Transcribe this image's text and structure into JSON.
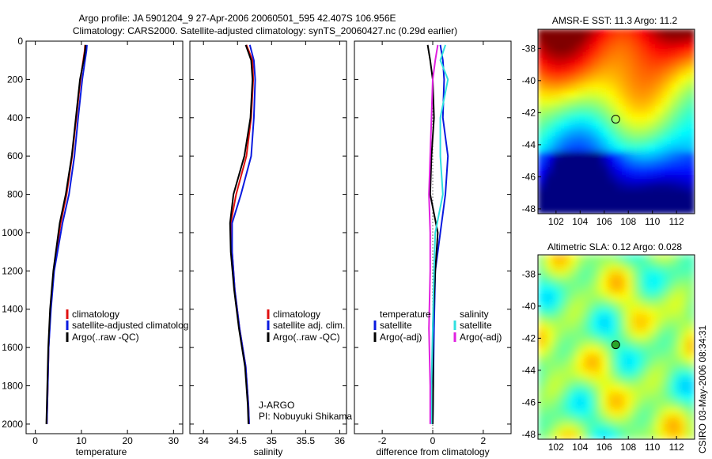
{
  "header": {
    "title_line1": "Argo profile: JA 5901204_9 27-Apr-2006 20060501_595 42.407S 106.956E",
    "title_line2": "Climatology: CARS2000. Satellite-adjusted climatology: synTS_20060427.nc (0.29d earlier)"
  },
  "side_text": "CSIRO 03-May-2006 08:34:31",
  "colors": {
    "climatology": "#e01010",
    "satellite": "#0a1adf",
    "argo": "#000000",
    "sat_salinity": "#30e0e0",
    "argo_salinity_adj": "#e020e0"
  },
  "chart_data": [
    {
      "type": "line",
      "id": "temperature_profile",
      "xlabel": "temperature",
      "ylabel": "",
      "xlim": [
        -2,
        32
      ],
      "ylim": [
        2050,
        0
      ],
      "xticks": [
        0,
        10,
        20,
        30
      ],
      "yticks": [
        0,
        200,
        400,
        600,
        800,
        1000,
        1200,
        1400,
        1600,
        1800,
        2000
      ],
      "legend": {
        "placement": "bottom-right",
        "entries": [
          "climatology",
          "satellite-adjusted climatolog",
          "Argo(..raw -QC)"
        ]
      },
      "series": [
        {
          "name": "climatology",
          "color": "#e01010",
          "y": [
            20,
            50,
            100,
            200,
            400,
            600,
            800,
            950,
            1200,
            1400,
            1600,
            1800,
            2000
          ],
          "x": [
            10.8,
            10.7,
            10.4,
            9.8,
            8.9,
            8.0,
            6.8,
            5.5,
            4.0,
            3.3,
            2.9,
            2.7,
            2.5
          ]
        },
        {
          "name": "satellite-adjusted climatolog",
          "color": "#0a1adf",
          "y": [
            20,
            50,
            100,
            200,
            400,
            600,
            800,
            950,
            1200,
            1400,
            1600,
            1800,
            2000
          ],
          "x": [
            11.2,
            11.1,
            10.8,
            10.2,
            9.3,
            8.5,
            7.3,
            5.9,
            4.1,
            3.4,
            2.9,
            2.7,
            2.5
          ]
        },
        {
          "name": "Argo(..raw -QC)",
          "color": "#000000",
          "y": [
            20,
            50,
            100,
            200,
            400,
            600,
            800,
            950,
            1200,
            1400,
            1600,
            1800,
            2000
          ],
          "x": [
            10.9,
            10.8,
            10.5,
            9.7,
            8.8,
            7.9,
            6.6,
            5.3,
            3.9,
            3.2,
            2.8,
            2.6,
            2.4
          ]
        }
      ]
    },
    {
      "type": "line",
      "id": "salinity_profile",
      "xlabel": "salinity",
      "ylabel": "",
      "xlim": [
        33.8,
        36.1
      ],
      "ylim": [
        2050,
        0
      ],
      "xticks": [
        34,
        34.5,
        35,
        35.5,
        36
      ],
      "legend": {
        "placement": "bottom-right",
        "entries": [
          "climatology",
          "satellite adj. clim.",
          "Argo(..raw -QC)"
        ]
      },
      "annotation_lines": [
        "J-ARGO",
        "PI: Nobuyuki Shikama"
      ],
      "series": [
        {
          "name": "climatology",
          "color": "#e01010",
          "y": [
            20,
            100,
            200,
            400,
            600,
            800,
            950,
            1100,
            1300,
            1500,
            1700,
            1900,
            2000
          ],
          "x": [
            34.63,
            34.72,
            34.73,
            34.7,
            34.63,
            34.48,
            34.4,
            34.42,
            34.46,
            34.53,
            34.62,
            34.66,
            34.67
          ]
        },
        {
          "name": "satellite adj. clim.",
          "color": "#0a1adf",
          "y": [
            20,
            100,
            200,
            400,
            600,
            800,
            950,
            1100,
            1300,
            1500,
            1700,
            1900,
            2000
          ],
          "x": [
            34.68,
            34.74,
            34.76,
            34.74,
            34.7,
            34.55,
            34.42,
            34.42,
            34.46,
            34.53,
            34.62,
            34.66,
            34.67
          ]
        },
        {
          "name": "Argo(..raw -QC)",
          "color": "#000000",
          "y": [
            20,
            100,
            200,
            400,
            600,
            800,
            950,
            1100,
            1300,
            1500,
            1700,
            1900,
            2000
          ],
          "x": [
            34.62,
            34.7,
            34.72,
            34.69,
            34.6,
            34.44,
            34.39,
            34.4,
            34.45,
            34.52,
            34.61,
            34.65,
            34.66
          ]
        }
      ]
    },
    {
      "type": "line",
      "id": "difference_profile",
      "xlabel": "difference from climatology",
      "ylabel": "",
      "xlim": [
        -3.1,
        3.1
      ],
      "ylim": [
        2050,
        0
      ],
      "xticks": [
        -2,
        0,
        2
      ],
      "legend": {
        "placement": "bottom",
        "headings": [
          "temperature",
          "salinity"
        ],
        "entries": [
          "satellite",
          "Argo(-adj)",
          "satellite",
          "Argo(-adj)"
        ]
      },
      "series": [
        {
          "name": "temperature satellite",
          "color": "#0a1adf",
          "y": [
            20,
            100,
            200,
            400,
            600,
            800,
            1000,
            1200,
            1500,
            1800,
            2000
          ],
          "x": [
            0.3,
            0.4,
            0.45,
            0.4,
            0.6,
            0.5,
            0.3,
            0.1,
            0.05,
            0.02,
            0.0
          ]
        },
        {
          "name": "temperature Argo(-adj)",
          "color": "#000000",
          "y": [
            20,
            100,
            200,
            400,
            600,
            800,
            1000,
            1200,
            1500,
            1800,
            2000
          ],
          "x": [
            -0.2,
            -0.1,
            0.0,
            0.05,
            -0.05,
            -0.1,
            0.2,
            0.1,
            0.0,
            0.02,
            0.0
          ]
        },
        {
          "name": "salinity satellite",
          "color": "#30e0e0",
          "y": [
            20,
            100,
            200,
            400,
            600,
            800,
            1000,
            1200,
            1500,
            1800,
            2000
          ],
          "x": [
            0.5,
            0.3,
            0.6,
            0.3,
            0.3,
            0.4,
            0.1,
            0.05,
            0.0,
            -0.05,
            -0.05
          ]
        },
        {
          "name": "salinity Argo(-adj)",
          "color": "#e020e0",
          "y": [
            20,
            100,
            200,
            400,
            600,
            800,
            1000,
            1200,
            1500,
            1800,
            2000
          ],
          "x": [
            0.2,
            0.1,
            0.0,
            -0.05,
            -0.1,
            -0.15,
            -0.1,
            -0.1,
            -0.15,
            -0.1,
            -0.1
          ]
        }
      ]
    },
    {
      "type": "heatmap",
      "id": "sst_map",
      "title": "AMSR-E SST: 11.3 Argo: 11.2",
      "xlim": [
        100.5,
        113.5
      ],
      "ylim": [
        -48.3,
        -36.8
      ],
      "xticks": [
        102,
        104,
        106,
        108,
        110,
        112
      ],
      "yticks": [
        -38,
        -40,
        -42,
        -44,
        -46,
        -48
      ],
      "marker": {
        "lon": 106.956,
        "lat": -42.407,
        "filled": false
      }
    },
    {
      "type": "heatmap",
      "id": "sla_map",
      "title": "Altimetric SLA: 0.12 Argo: 0.028",
      "xlim": [
        100.5,
        113.5
      ],
      "ylim": [
        -48.3,
        -36.8
      ],
      "xticks": [
        102,
        104,
        106,
        108,
        110,
        112
      ],
      "yticks": [
        -38,
        -40,
        -42,
        -44,
        -46,
        -48
      ],
      "marker": {
        "lon": 106.956,
        "lat": -42.407,
        "filled": true
      }
    }
  ]
}
